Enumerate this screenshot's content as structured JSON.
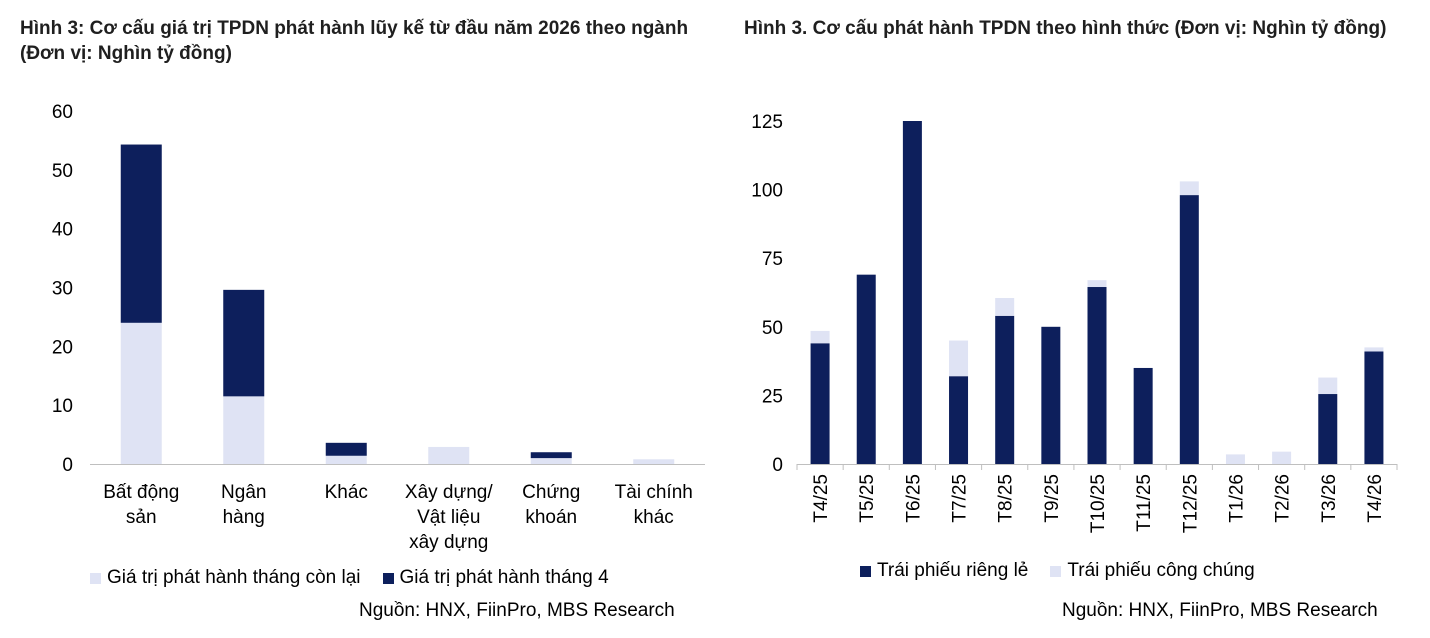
{
  "chart_data": [
    {
      "type": "bar",
      "stacked": true,
      "title": "Hình 3: Cơ cấu giá trị TPDN phát hành lũy kế từ đầu năm 2026 theo ngành (Đơn vị: Nghìn tỷ đồng)",
      "categories": [
        [
          "Bất động",
          "sản"
        ],
        [
          "Ngân",
          "hàng"
        ],
        [
          "Khác"
        ],
        [
          "Xây dựng/",
          "Vật liệu",
          "xây dựng"
        ],
        [
          "Chứng",
          "khoán"
        ],
        [
          "Tài chính",
          "khác"
        ]
      ],
      "series": [
        {
          "name": "Giá trị phát hành tháng còn lại",
          "color": "#dfe3f4",
          "values": [
            24.0,
            11.5,
            1.4,
            2.9,
            1.0,
            0.8
          ]
        },
        {
          "name": "Giá trị phát hành tháng 4",
          "color": "#0d1f5c",
          "values": [
            30.3,
            18.1,
            2.2,
            0.0,
            1.0,
            0.0
          ]
        }
      ],
      "yticks": [
        0,
        10,
        20,
        30,
        40,
        50,
        60
      ],
      "ylim": [
        0,
        60
      ],
      "legend": "bottom",
      "source": "Nguồn: HNX, FiinPro, MBS Research"
    },
    {
      "type": "bar",
      "stacked": true,
      "title": "Hình 3. Cơ cấu phát hành TPDN theo hình thức (Đơn vị: Nghìn tỷ đồng)",
      "categories": [
        "T4/25",
        "T5/25",
        "T6/25",
        "T7/25",
        "T8/25",
        "T9/25",
        "T10/25",
        "T11/25",
        "T12/25",
        "T1/26",
        "T2/26",
        "T3/26",
        "T4/26"
      ],
      "series": [
        {
          "name": "Trái phiếu riêng lẻ",
          "color": "#0d1f5c",
          "values": [
            44,
            69,
            125,
            32,
            54,
            50,
            64.5,
            35,
            98,
            0,
            0,
            25.5,
            41
          ]
        },
        {
          "name": "Trái phiếu công chúng",
          "color": "#dfe3f4",
          "values": [
            4.5,
            0,
            0,
            13,
            6.5,
            0,
            2.5,
            0,
            5,
            3.5,
            4.5,
            6,
            1.5
          ]
        }
      ],
      "yticks": [
        0,
        25,
        50,
        75,
        100,
        125
      ],
      "ylim": [
        0,
        125
      ],
      "legend": "bottom",
      "source": "Nguồn: HNX, FiinPro, MBS Research"
    }
  ]
}
